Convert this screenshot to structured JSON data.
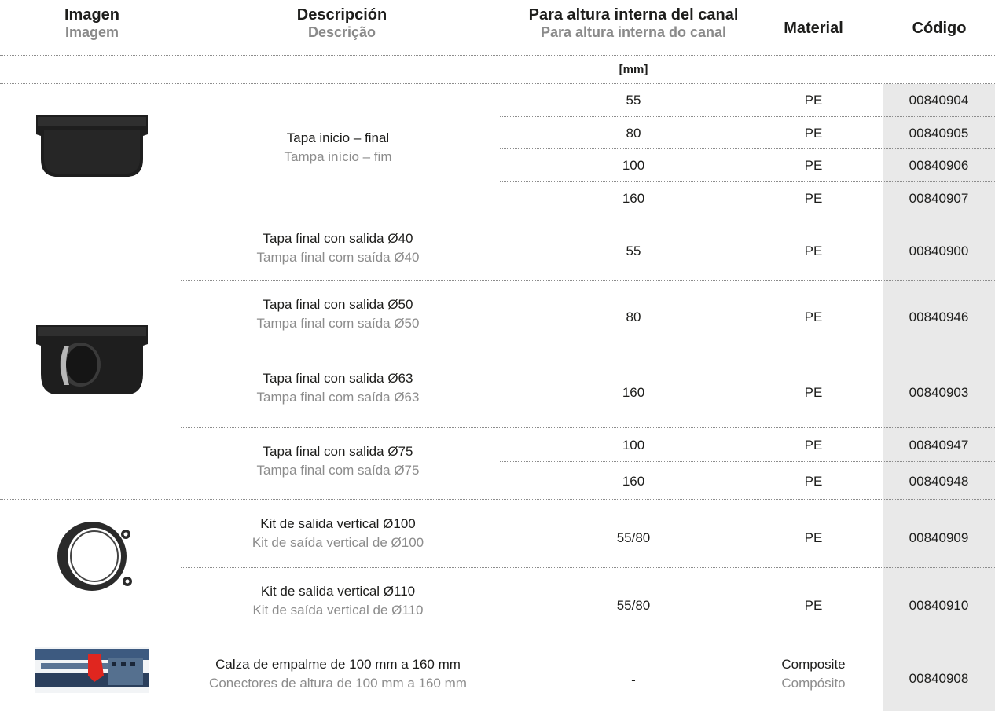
{
  "headers": {
    "imagen": {
      "es": "Imagen",
      "pt": "Imagem"
    },
    "descripcion": {
      "es": "Descripción",
      "pt": "Descrição"
    },
    "altura": {
      "es": "Para altura interna del canal",
      "pt": "Para altura interna do canal"
    },
    "material": "Material",
    "codigo": "Código",
    "unit": "[mm]"
  },
  "groups": {
    "g1": {
      "es": "Tapa inicio – final",
      "pt": "Tampa início – fim"
    },
    "g2a": {
      "es": "Tapa final con salida Ø40",
      "pt": "Tampa final com saída Ø40"
    },
    "g2b": {
      "es": "Tapa final con salida Ø50",
      "pt": "Tampa final com saída Ø50"
    },
    "g2c": {
      "es": "Tapa final con salida Ø63",
      "pt": "Tampa final com saída Ø63"
    },
    "g2d": {
      "es": "Tapa final con salida Ø75",
      "pt": "Tampa final com saída Ø75"
    },
    "g3a": {
      "es": "Kit de salida vertical Ø100",
      "pt": "Kit de saída vertical de Ø100"
    },
    "g3b": {
      "es": "Kit de salida vertical Ø110",
      "pt": "Kit de saída vertical de Ø110"
    },
    "g4": {
      "es": "Calza de empalme de 100 mm a 160 mm",
      "pt": "Conectores de altura de 100 mm a 160 mm"
    }
  },
  "rows": [
    {
      "h": "55",
      "m": "PE",
      "c": "00840904"
    },
    {
      "h": "80",
      "m": "PE",
      "c": "00840905"
    },
    {
      "h": "100",
      "m": "PE",
      "c": "00840906"
    },
    {
      "h": "160",
      "m": "PE",
      "c": "00840907"
    },
    {
      "h": "55",
      "m": "PE",
      "c": "00840900"
    },
    {
      "h": "80",
      "m": "PE",
      "c": "00840946"
    },
    {
      "h": "160",
      "m": "PE",
      "c": "00840903"
    },
    {
      "h": "100",
      "m": "PE",
      "c": "00840947"
    },
    {
      "h": "160",
      "m": "PE",
      "c": "00840948"
    },
    {
      "h": "55/80",
      "m": "PE",
      "c": "00840909"
    },
    {
      "h": "55/80",
      "m": "PE",
      "c": "00840910"
    },
    {
      "h": "-",
      "m": "Composite",
      "m2": "Compósito",
      "c": "00840908"
    }
  ],
  "colors": {
    "text": "#1d1d1b",
    "secondary": "#8c8c8c",
    "code_bg": "#e9e9e9"
  }
}
